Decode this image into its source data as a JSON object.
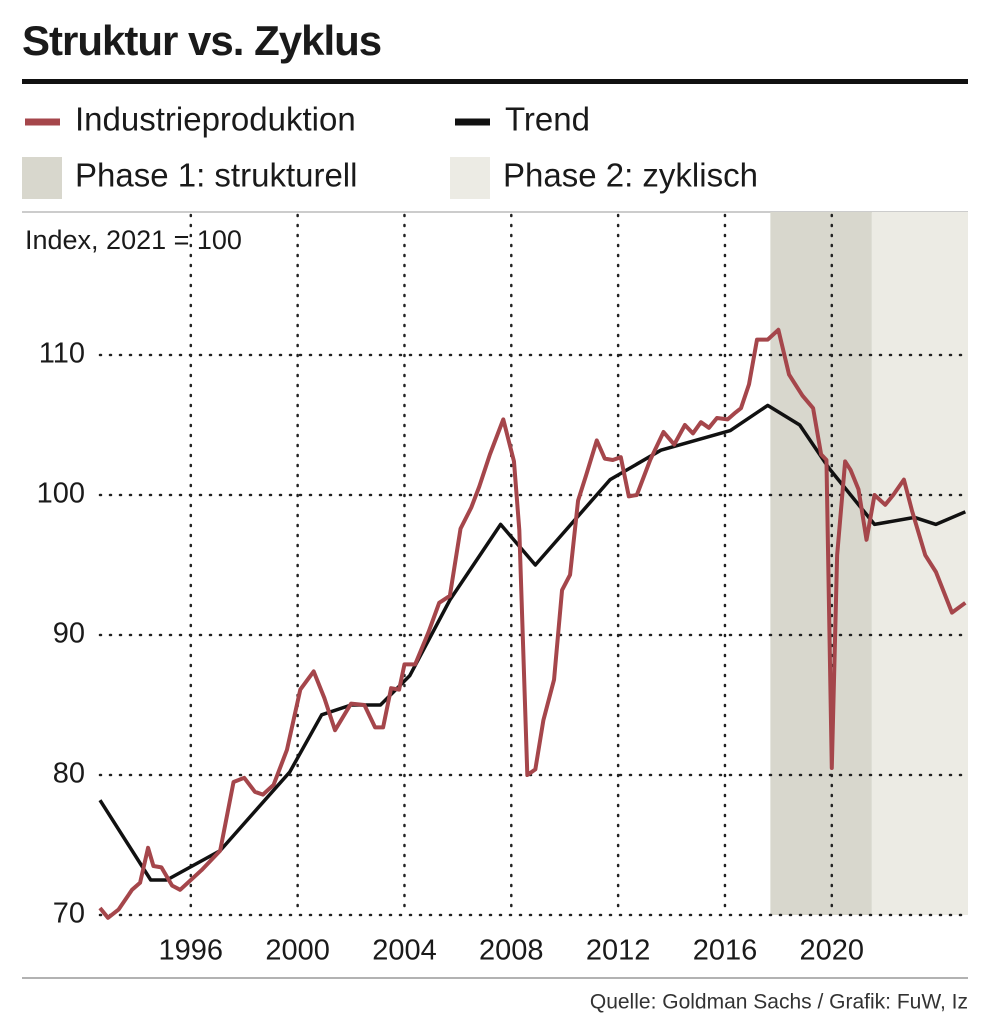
{
  "chart_data": {
    "type": "line",
    "title": "Struktur vs. Zyklus",
    "y_label": "Index, 2021 = 100",
    "source": "Quelle: Goldman  Sachs / Grafik: FuW, Iz",
    "xlim": [
      1992.6,
      2025.1
    ],
    "ylim": [
      70,
      120
    ],
    "xticks": [
      1996,
      2000,
      2004,
      2008,
      2012,
      2016,
      2020
    ],
    "yticks": [
      70,
      80,
      90,
      100,
      110
    ],
    "grid": true,
    "phases": [
      {
        "name": "Phase 1: strukturell",
        "color": "#d8d7cd",
        "xrange": [
          2017.7,
          2021.5
        ]
      },
      {
        "name": "Phase 2: zyklisch",
        "color": "#ecebe4",
        "xrange": [
          2021.5,
          2025.1
        ]
      }
    ],
    "series": [
      {
        "name": "Industrieproduktion",
        "color": "#a5464b",
        "x": [
          1992.6,
          1992.9,
          1993.3,
          1993.8,
          1994.1,
          1994.4,
          1994.6,
          1994.9,
          1995.3,
          1995.6,
          1996.4,
          1997.1,
          1997.6,
          1998.0,
          1998.4,
          1998.7,
          1999.1,
          1999.6,
          2000.1,
          2000.6,
          2001.0,
          2001.4,
          2002.0,
          2002.5,
          2002.9,
          2003.2,
          2003.5,
          2003.8,
          2004.0,
          2004.4,
          2004.9,
          2005.3,
          2005.7,
          2006.1,
          2006.5,
          2006.8,
          2007.2,
          2007.7,
          2008.1,
          2008.3,
          2008.6,
          2008.9,
          2009.2,
          2009.6,
          2009.9,
          2010.2,
          2010.5,
          2010.8,
          2011.2,
          2011.5,
          2011.8,
          2012.1,
          2012.4,
          2012.7,
          2013.2,
          2013.7,
          2014.1,
          2014.5,
          2014.8,
          2015.1,
          2015.4,
          2015.7,
          2016.1,
          2016.4,
          2016.6,
          2016.9,
          2017.2,
          2017.6,
          2018.0,
          2018.4,
          2018.9,
          2019.3,
          2019.6,
          2019.8,
          2020.0,
          2020.2,
          2020.5,
          2020.7,
          2021.0,
          2021.3,
          2021.6,
          2022.0,
          2022.3,
          2022.7,
          2023.0,
          2023.5,
          2023.9,
          2024.5,
          2025.0
        ],
        "values": [
          70.5,
          69.8,
          70.4,
          71.8,
          72.3,
          74.8,
          73.5,
          73.4,
          72.1,
          71.8,
          73.2,
          74.6,
          79.5,
          79.8,
          78.8,
          78.6,
          79.3,
          81.8,
          86.1,
          87.4,
          85.5,
          83.2,
          85.1,
          85.0,
          83.4,
          83.4,
          86.2,
          86.1,
          87.9,
          87.9,
          90.2,
          92.3,
          92.8,
          97.6,
          99.1,
          100.6,
          102.9,
          105.4,
          102.4,
          97.5,
          80.0,
          80.4,
          83.9,
          86.8,
          93.2,
          94.3,
          99.6,
          101.4,
          103.9,
          102.6,
          102.5,
          102.7,
          99.9,
          100.0,
          102.5,
          104.5,
          103.6,
          105.0,
          104.4,
          105.2,
          104.8,
          105.5,
          105.4,
          105.9,
          106.2,
          107.9,
          111.1,
          111.1,
          111.8,
          108.6,
          107.1,
          106.2,
          102.9,
          102.5,
          80.5,
          95.7,
          102.4,
          101.8,
          100.4,
          96.8,
          100.0,
          99.3,
          100.0,
          101.1,
          98.9,
          95.7,
          94.5,
          91.6,
          92.3
        ]
      },
      {
        "name": "Trend",
        "color": "#111111",
        "x": [
          1992.6,
          1994.5,
          1995.1,
          1997.1,
          1999.7,
          2000.9,
          2002.0,
          2003.1,
          2004.2,
          2005.7,
          2007.6,
          2008.9,
          2011.7,
          2013.6,
          2016.2,
          2017.6,
          2018.8,
          2019.9,
          2021.6,
          2023.1,
          2023.9,
          2025.0
        ],
        "values": [
          78.2,
          72.5,
          72.5,
          74.6,
          80.2,
          84.3,
          85.0,
          85.0,
          87.1,
          92.5,
          97.9,
          95.0,
          101.1,
          103.2,
          104.6,
          106.4,
          105.0,
          101.9,
          97.9,
          98.4,
          97.9,
          98.8
        ]
      }
    ]
  }
}
